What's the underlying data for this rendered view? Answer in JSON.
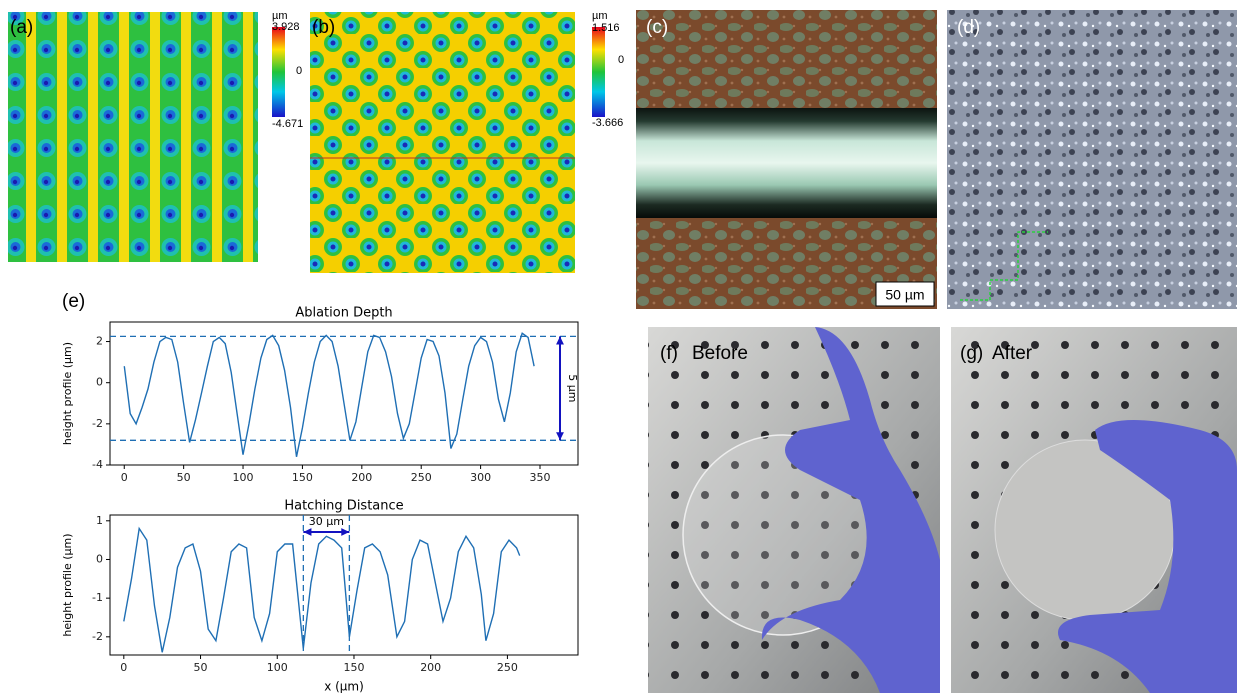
{
  "panels": {
    "a": {
      "label": "(a)",
      "colorbar": {
        "unit": "µm",
        "max": "3.928",
        "mid": "0",
        "min": "-4.671"
      }
    },
    "b": {
      "label": "(b)",
      "colorbar": {
        "unit": "µm",
        "max": "1.516",
        "mid": "0",
        "min": "-3.666"
      }
    },
    "c": {
      "label": "(c)",
      "scale_bar": "50 µm"
    },
    "d": {
      "label": "(d)"
    },
    "e": {
      "label": "(e)"
    },
    "f": {
      "label": "(f)",
      "caption": "Before"
    },
    "g": {
      "label": "(g)",
      "caption": "After"
    }
  },
  "chart_data": [
    {
      "type": "line",
      "title": "Ablation Depth",
      "ylabel": "height profile (µm)",
      "color": "#1f6fb4",
      "x": [
        0,
        5,
        10,
        15,
        20,
        25,
        30,
        35,
        40,
        45,
        50,
        55,
        60,
        65,
        70,
        75,
        80,
        85,
        90,
        95,
        100,
        105,
        110,
        115,
        120,
        125,
        130,
        135,
        140,
        145,
        150,
        155,
        160,
        165,
        170,
        175,
        180,
        185,
        190,
        195,
        200,
        205,
        210,
        215,
        220,
        225,
        230,
        235,
        240,
        245,
        250,
        255,
        260,
        265,
        270,
        275,
        280,
        285,
        290,
        295,
        300,
        305,
        310,
        315,
        320,
        325,
        330,
        335,
        340,
        345
      ],
      "values": [
        0.8,
        -1.5,
        -2.0,
        -1.2,
        -0.3,
        1.0,
        2.0,
        2.2,
        2.1,
        1.0,
        -1.0,
        -2.9,
        -1.8,
        -0.5,
        0.8,
        2.0,
        2.2,
        1.9,
        0.5,
        -1.5,
        -3.5,
        -2.0,
        -0.3,
        1.2,
        2.1,
        2.3,
        1.8,
        0.6,
        -1.2,
        -3.6,
        -2.2,
        -0.5,
        1.0,
        2.0,
        2.3,
        2.0,
        0.8,
        -1.0,
        -2.8,
        -1.9,
        -0.2,
        1.5,
        2.3,
        2.2,
        1.5,
        0.3,
        -1.5,
        -2.7,
        -2.0,
        -0.4,
        1.2,
        2.1,
        2.0,
        1.3,
        -0.5,
        -3.2,
        -2.5,
        -0.8,
        0.8,
        1.8,
        2.2,
        2.0,
        1.0,
        -0.8,
        -1.9,
        -0.5,
        1.5,
        2.4,
        2.2,
        0.8
      ],
      "xlim": [
        -12,
        382
      ],
      "ylim": [
        -4,
        2.95
      ],
      "xticks": [
        0,
        50,
        100,
        150,
        200,
        250,
        300,
        350
      ],
      "yticks": [
        -4,
        -2,
        0,
        2
      ],
      "hlines": [
        2.25,
        -2.8
      ],
      "annotation": "5 µm"
    },
    {
      "type": "line",
      "title": "Hatching Distance",
      "ylabel": "height profile (µm)",
      "xlabel": "x (µm)",
      "color": "#1f6fb4",
      "x": [
        0,
        5,
        10,
        15,
        20,
        25,
        30,
        35,
        40,
        45,
        50,
        55,
        60,
        65,
        70,
        75,
        80,
        85,
        90,
        95,
        100,
        105,
        110,
        117,
        122,
        127,
        132,
        137,
        142,
        147,
        152,
        157,
        162,
        167,
        172,
        178,
        183,
        188,
        193,
        198,
        203,
        208,
        213,
        218,
        223,
        228,
        233,
        236,
        241,
        246,
        251,
        256,
        258
      ],
      "values": [
        -1.6,
        -0.5,
        0.8,
        0.5,
        -1.2,
        -2.4,
        -1.5,
        -0.2,
        0.3,
        0.4,
        -0.3,
        -1.8,
        -2.1,
        -1.0,
        0.2,
        0.4,
        0.3,
        -1.5,
        -2.1,
        -1.4,
        0.2,
        0.4,
        0.4,
        -2.3,
        -0.6,
        0.4,
        0.6,
        0.5,
        0.3,
        -2.0,
        -0.8,
        0.3,
        0.4,
        0.2,
        -0.4,
        -2.0,
        -1.6,
        0.0,
        0.5,
        0.4,
        -0.6,
        -1.6,
        -1.0,
        0.2,
        0.6,
        0.3,
        -0.9,
        -2.1,
        -1.4,
        0.2,
        0.5,
        0.3,
        0.1
      ],
      "xlim": [
        -9,
        296
      ],
      "ylim": [
        -2.47,
        1.15
      ],
      "xticks": [
        0,
        50,
        100,
        150,
        200,
        250
      ],
      "yticks": [
        -2,
        -1,
        0,
        1
      ],
      "vlines": [
        117,
        147
      ],
      "annotation": "30 µm"
    }
  ]
}
